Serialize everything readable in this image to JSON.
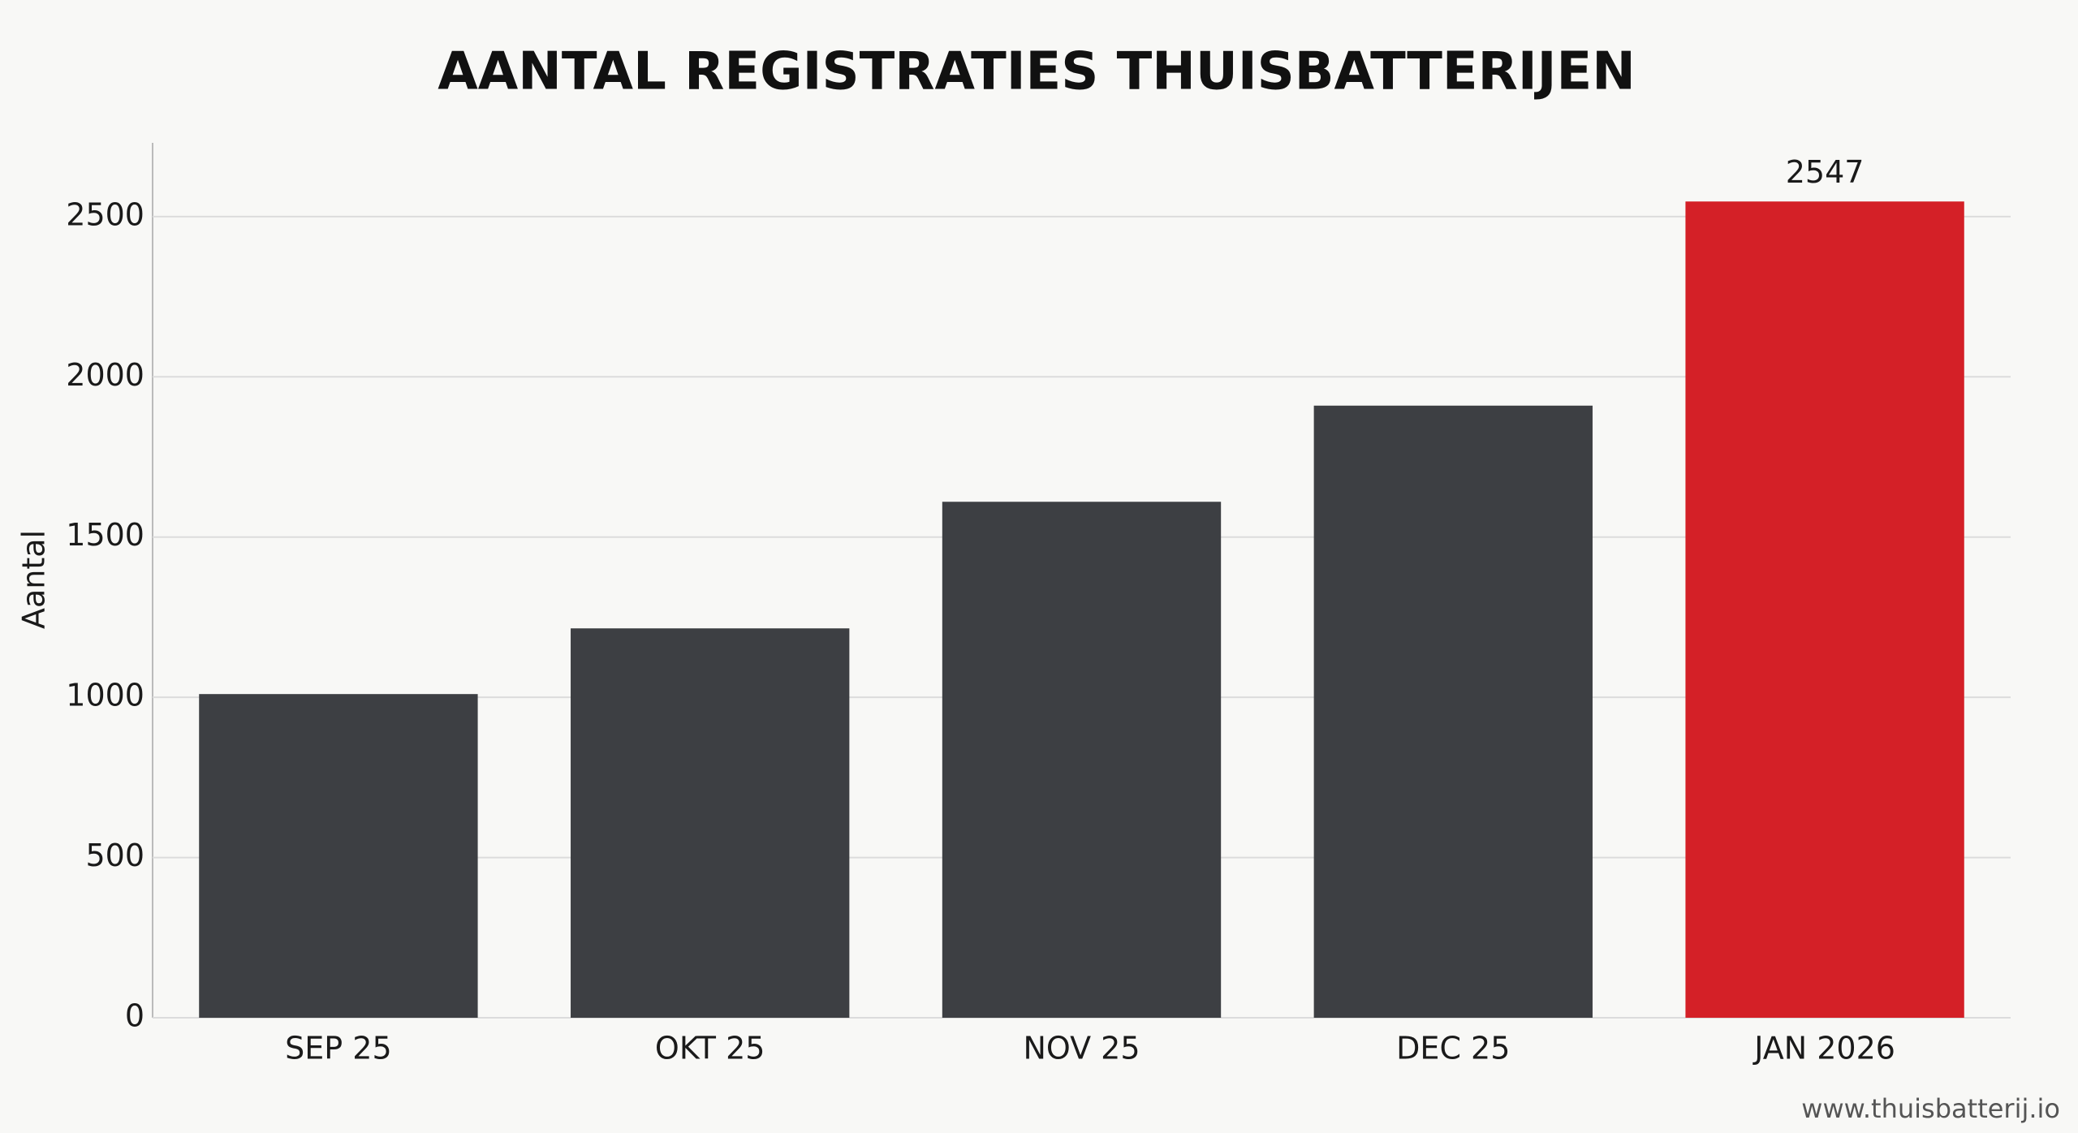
{
  "chart_data": {
    "type": "bar",
    "title": "AANTAL REGISTRATIES THUISBATTERIJEN",
    "y_label": "Aantal",
    "categories": [
      "SEP 25",
      "OKT 25",
      "NOV 25",
      "DEC 25",
      "JAN 2026"
    ],
    "values": [
      1010,
      1215,
      1610,
      1910,
      2547
    ],
    "colors": [
      "#3d3f43",
      "#3d3f43",
      "#3d3f43",
      "#3d3f43",
      "#d42027"
    ],
    "show_value_label": [
      false,
      false,
      false,
      false,
      true
    ],
    "ylim": [
      0,
      2730
    ],
    "yticks": [
      0,
      500,
      1000,
      1500,
      2000,
      2500
    ],
    "grid": true,
    "watermark": "www.thuisbatterij.io"
  }
}
